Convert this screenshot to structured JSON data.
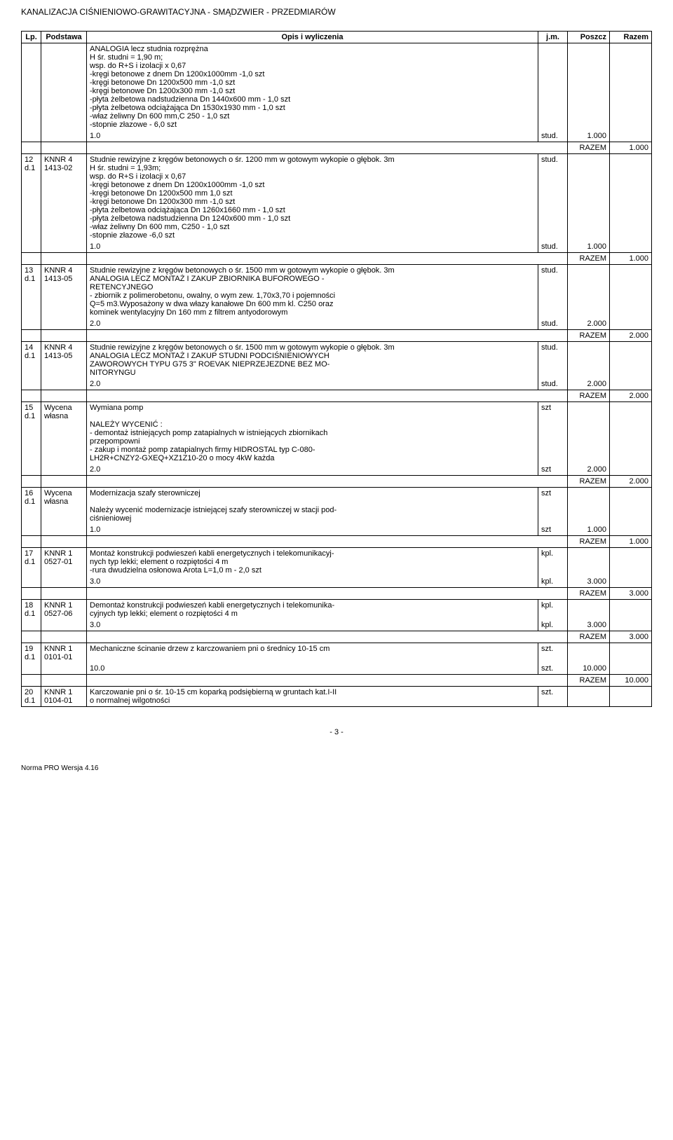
{
  "header": "KANALIZACJA CIŚNIENIOWO-GRAWITACYJNA - SMĄDZWIER - PRZEDMIARÓW",
  "columns": {
    "lp": "Lp.",
    "podstawa": "Podstawa",
    "opis": "Opis i wyliczenia",
    "jm": "j.m.",
    "poszcz": "Poszcz",
    "razem": "Razem"
  },
  "rows": [
    {
      "lp": "",
      "podstawa": "",
      "opis": "ANALOGIA lecz studnia rozprężna\nH śr. studni = 1,90 m;\nwsp. do R+S i izolacji x 0,67\n-kręgi betonowe z dnem Dn 1200x1000mm -1,0 szt\n-kręgi betonowe Dn 1200x500 mm -1,0 szt\n-kręgi betonowe Dn 1200x300 mm -1,0 szt\n-płyta żelbetowa nadstudzienna Dn 1440x600 mm - 1,0 szt\n-płyta żelbetowa odciążająca Dn 1530x1930 mm - 1,0 szt\n-właz żeliwny Dn 600 mm,C 250 - 1,0 szt\n-stopnie złazowe - 6,0 szt",
      "jm": "",
      "poszcz": "",
      "razem": "",
      "borderBottom": false
    },
    {
      "lp": "",
      "podstawa": "",
      "opis": "1.0",
      "jm": "stud.",
      "poszcz": "1.000",
      "razem": "",
      "borderTop": false
    },
    {
      "razemRow": true,
      "label": "RAZEM",
      "value": "1.000"
    },
    {
      "lp": "12\nd.1",
      "podstawa": "KNNR 4\n1413-02",
      "opis": "Studnie rewizyjne z kręgów betonowych o śr. 1200 mm w gotowym wykopie o głębok. 3m\nH śr. studni = 1,93m;\nwsp. do R+S i izolacji x 0,67\n-kręgi betonowe z dnem Dn 1200x1000mm -1,0 szt\n-kręgi betonowe Dn 1200x500 mm 1,0 szt\n-kręgi betonowe Dn 1200x300 mm -1,0 szt\n-płyta żelbetowa odciążająca Dn 1260x1660 mm - 1,0 szt\n-płyta żelbetowa nadstudzienna Dn 1240x600 mm - 1,0 szt\n-właz żeliwny Dn 600 mm, C250 - 1,0 szt\n-stopnie złazowe -6,0 szt",
      "jm": "stud.",
      "poszcz": "",
      "razem": "",
      "borderBottom": false
    },
    {
      "lp": "",
      "podstawa": "",
      "opis": "1.0",
      "jm": "stud.",
      "poszcz": "1.000",
      "razem": "",
      "borderTop": false
    },
    {
      "razemRow": true,
      "label": "RAZEM",
      "value": "1.000"
    },
    {
      "lp": "13\nd.1",
      "podstawa": "KNNR 4\n1413-05",
      "opis": "Studnie rewizyjne z kręgów betonowych o śr. 1500 mm w gotowym wykopie o głębok. 3m\nANALOGIA LECZ MONTAŻ I ZAKUP ZBIORNIKA BUFOROWEGO -\nRETENCYJNEGO\n- zbiornik z polimerobetonu, owalny, o wym zew. 1,70x3,70 i pojemności\nQ=5 m3.Wyposażony w dwa włazy kanałowe Dn 600 mm kl. C250 oraz\nkominek wentylacyjny Dn 160 mm z filtrem antyodorowym",
      "jm": "stud.",
      "poszcz": "",
      "razem": "",
      "borderBottom": false
    },
    {
      "lp": "",
      "podstawa": "",
      "opis": "2.0",
      "jm": "stud.",
      "poszcz": "2.000",
      "razem": "",
      "borderTop": false
    },
    {
      "razemRow": true,
      "label": "RAZEM",
      "value": "2.000"
    },
    {
      "lp": "14\nd.1",
      "podstawa": "KNNR 4\n1413-05",
      "opis": "Studnie rewizyjne z kręgów betonowych o śr. 1500 mm w gotowym wykopie o głębok. 3m\nANALOGIA LECZ MONTAŻ I ZAKUP STUDNI PODCIŚNIENIOWYCH\nZAWOROWYCH TYPU G75 3\" ROEVAK NIEPRZEJEZDNE BEZ MO-\nNITORYNGU",
      "jm": "stud.",
      "poszcz": "",
      "razem": "",
      "borderBottom": false
    },
    {
      "lp": "",
      "podstawa": "",
      "opis": "2.0",
      "jm": "stud.",
      "poszcz": "2.000",
      "razem": "",
      "borderTop": false
    },
    {
      "razemRow": true,
      "label": "RAZEM",
      "value": "2.000"
    },
    {
      "lp": "15\nd.1",
      "podstawa": "Wycena\nwłasna",
      "opis": "Wymiana pomp\n\nNALEŻY WYCENIĆ :\n- demontaż istniejących pomp zatapialnych w istniejących zbiornikach\nprzepompowni\n- zakup i montaż pomp zatapialnych firmy HIDROSTAL typ C-080-\nLH2R+CNZY2-GXEQ+XZ1Z10-20 o mocy 4kW każda",
      "jm": "szt",
      "poszcz": "",
      "razem": "",
      "borderBottom": false
    },
    {
      "lp": "",
      "podstawa": "",
      "opis": "2.0",
      "jm": "szt",
      "poszcz": "2.000",
      "razem": "",
      "borderTop": false
    },
    {
      "razemRow": true,
      "label": "RAZEM",
      "value": "2.000"
    },
    {
      "lp": "16\nd.1",
      "podstawa": "Wycena\nwłasna",
      "opis": "Modernizacja szafy sterowniczej\n\nNależy wycenić modernizacje istniejącej szafy sterowniczej w stacji pod-\nciśnieniowej",
      "jm": "szt",
      "poszcz": "",
      "razem": "",
      "borderBottom": false
    },
    {
      "lp": "",
      "podstawa": "",
      "opis": "1.0",
      "jm": "szt",
      "poszcz": "1.000",
      "razem": "",
      "borderTop": false
    },
    {
      "razemRow": true,
      "label": "RAZEM",
      "value": "1.000"
    },
    {
      "lp": "17\nd.1",
      "podstawa": "KNNR 1\n0527-01",
      "opis": "Montaż konstrukcji podwieszeń kabli energetycznych i telekomunikacyj-\nnych typ lekki; element o rozpiętości 4 m\n-rura dwudzielna osłonowa Arota L=1,0 m - 2,0 szt",
      "jm": "kpl.",
      "poszcz": "",
      "razem": "",
      "borderBottom": false
    },
    {
      "lp": "",
      "podstawa": "",
      "opis": "3.0",
      "jm": "kpl.",
      "poszcz": "3.000",
      "razem": "",
      "borderTop": false
    },
    {
      "razemRow": true,
      "label": "RAZEM",
      "value": "3.000"
    },
    {
      "lp": "18\nd.1",
      "podstawa": "KNNR 1\n0527-06",
      "opis": "Demontaż konstrukcji podwieszeń kabli energetycznych i telekomunika-\ncyjnych typ lekki; element o rozpiętości 4 m",
      "jm": "kpl.",
      "poszcz": "",
      "razem": "",
      "borderBottom": false
    },
    {
      "lp": "",
      "podstawa": "",
      "opis": "3.0",
      "jm": "kpl.",
      "poszcz": "3.000",
      "razem": "",
      "borderTop": false
    },
    {
      "razemRow": true,
      "label": "RAZEM",
      "value": "3.000"
    },
    {
      "lp": "19\nd.1",
      "podstawa": "KNNR 1\n0101-01",
      "opis": "Mechaniczne ścinanie drzew z karczowaniem pni o średnicy 10-15 cm",
      "jm": "szt.",
      "poszcz": "",
      "razem": "",
      "borderBottom": false
    },
    {
      "lp": "",
      "podstawa": "",
      "opis": "10.0",
      "jm": "szt.",
      "poszcz": "10.000",
      "razem": "",
      "borderTop": false
    },
    {
      "razemRow": true,
      "label": "RAZEM",
      "value": "10.000"
    },
    {
      "lp": "20\nd.1",
      "podstawa": "KNNR 1\n0104-01",
      "opis": "Karczowanie pni o śr. 10-15 cm koparką podsiębierną w gruntach kat.I-II\no normalnej wilgotności",
      "jm": "szt.",
      "poszcz": "",
      "razem": ""
    }
  ],
  "pageNum": "- 3 -",
  "footer": "Norma PRO Wersja 4.16"
}
